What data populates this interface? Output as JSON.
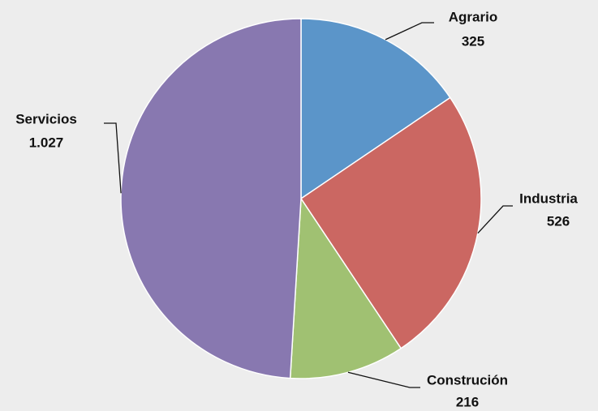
{
  "chart_data": {
    "type": "pie",
    "categories": [
      "Agrario",
      "Industria",
      "Construción",
      "Servicios"
    ],
    "values": [
      325,
      526,
      216,
      1027
    ],
    "value_labels": [
      "325",
      "526",
      "216",
      "1.027"
    ],
    "colors": [
      "#5b95c9",
      "#cb6762",
      "#a0c172",
      "#8878b0"
    ]
  }
}
